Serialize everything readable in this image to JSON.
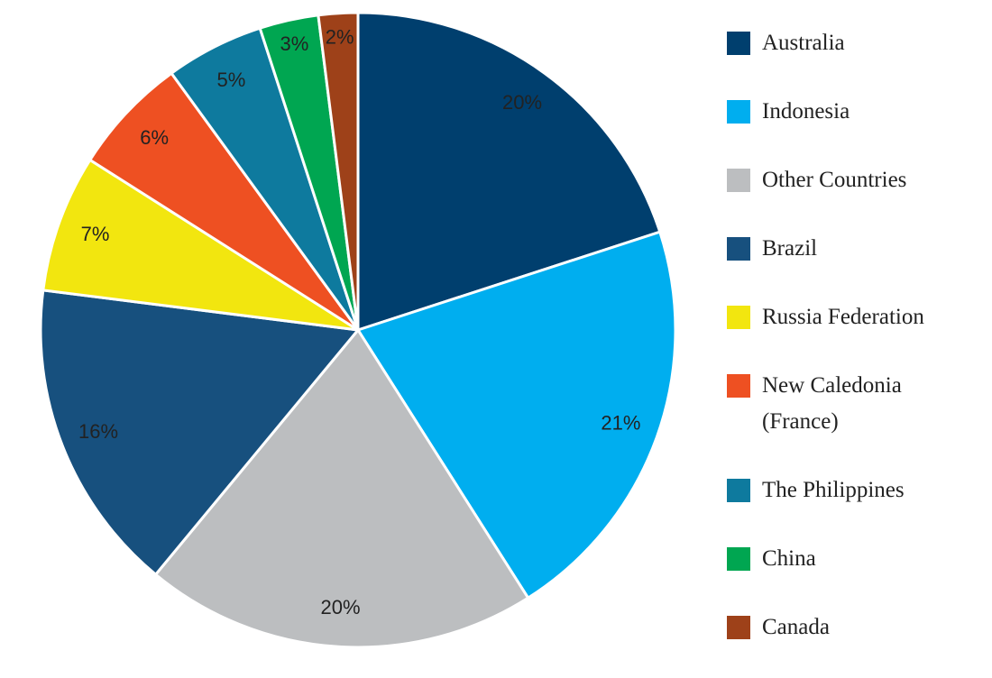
{
  "chart_data": {
    "type": "pie",
    "categories": [
      "Australia",
      "Indonesia",
      "Other Countries",
      "Brazil",
      "Russia Federation",
      "New Caledonia (France)",
      "The Philippines",
      "China",
      "Canada"
    ],
    "values": [
      20,
      21,
      20,
      16,
      7,
      6,
      5,
      3,
      2
    ],
    "value_labels": [
      "20%",
      "21%",
      "20%",
      "16%",
      "7%",
      "6%",
      "5%",
      "3%",
      "2%"
    ],
    "colors": [
      "#003f6e",
      "#00aeef",
      "#bcbec0",
      "#17507e",
      "#f2e60f",
      "#ee5022",
      "#0e7a9e",
      "#00a651",
      "#9e4119"
    ],
    "legend": "right"
  }
}
